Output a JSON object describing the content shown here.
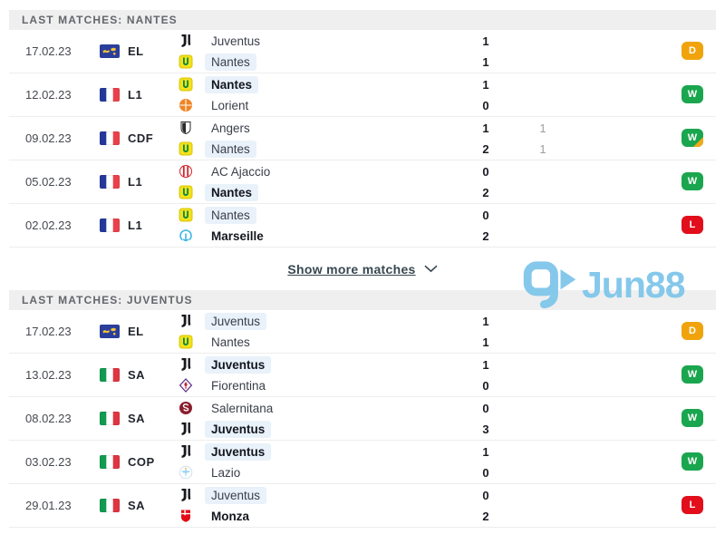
{
  "watermark": {
    "text": "Jun88",
    "logo_icon": "jun88-play-bubble-icon"
  },
  "colors": {
    "win": "#1aa64e",
    "draw": "#f0a30a",
    "loss": "#e20e1b",
    "aet_corner": "#f2a918",
    "team_highlight": "#e9f1fa",
    "watermark_blue": "#7fc6ea",
    "header_bg": "#efefef"
  },
  "sections": [
    {
      "title": "LAST MATCHES: NANTES",
      "show_more": "Show more matches",
      "rows": [
        {
          "date": "17.02.23",
          "competition": "EL",
          "flag": "europa-league",
          "home": {
            "team": "Juventus",
            "logo": "juventus",
            "score": "1",
            "score2": "",
            "bold": false,
            "highlight": false
          },
          "away": {
            "team": "Nantes",
            "logo": "nantes",
            "score": "1",
            "score2": "",
            "bold": false,
            "highlight": true
          },
          "result": "D",
          "aet": false
        },
        {
          "date": "12.02.23",
          "competition": "L1",
          "flag": "france",
          "home": {
            "team": "Nantes",
            "logo": "nantes",
            "score": "1",
            "score2": "",
            "bold": true,
            "highlight": true
          },
          "away": {
            "team": "Lorient",
            "logo": "lorient",
            "score": "0",
            "score2": "",
            "bold": false,
            "highlight": false
          },
          "result": "W",
          "aet": false
        },
        {
          "date": "09.02.23",
          "competition": "CDF",
          "flag": "france",
          "home": {
            "team": "Angers",
            "logo": "angers",
            "score": "1",
            "score2": "1",
            "bold": false,
            "highlight": false
          },
          "away": {
            "team": "Nantes",
            "logo": "nantes",
            "score": "2",
            "score2": "1",
            "bold": false,
            "highlight": true
          },
          "result": "W",
          "aet": true
        },
        {
          "date": "05.02.23",
          "competition": "L1",
          "flag": "france",
          "home": {
            "team": "AC Ajaccio",
            "logo": "ajaccio",
            "score": "0",
            "score2": "",
            "bold": false,
            "highlight": false
          },
          "away": {
            "team": "Nantes",
            "logo": "nantes",
            "score": "2",
            "score2": "",
            "bold": true,
            "highlight": true
          },
          "result": "W",
          "aet": false
        },
        {
          "date": "02.02.23",
          "competition": "L1",
          "flag": "france",
          "home": {
            "team": "Nantes",
            "logo": "nantes",
            "score": "0",
            "score2": "",
            "bold": false,
            "highlight": true
          },
          "away": {
            "team": "Marseille",
            "logo": "marseille",
            "score": "2",
            "score2": "",
            "bold": true,
            "highlight": false
          },
          "result": "L",
          "aet": false
        }
      ]
    },
    {
      "title": "LAST MATCHES: JUVENTUS",
      "show_more": "",
      "rows": [
        {
          "date": "17.02.23",
          "competition": "EL",
          "flag": "europa-league",
          "home": {
            "team": "Juventus",
            "logo": "juventus",
            "score": "1",
            "score2": "",
            "bold": false,
            "highlight": true
          },
          "away": {
            "team": "Nantes",
            "logo": "nantes",
            "score": "1",
            "score2": "",
            "bold": false,
            "highlight": false
          },
          "result": "D",
          "aet": false
        },
        {
          "date": "13.02.23",
          "competition": "SA",
          "flag": "italy",
          "home": {
            "team": "Juventus",
            "logo": "juventus",
            "score": "1",
            "score2": "",
            "bold": true,
            "highlight": true
          },
          "away": {
            "team": "Fiorentina",
            "logo": "fiorentina",
            "score": "0",
            "score2": "",
            "bold": false,
            "highlight": false
          },
          "result": "W",
          "aet": false
        },
        {
          "date": "08.02.23",
          "competition": "SA",
          "flag": "italy",
          "home": {
            "team": "Salernitana",
            "logo": "salernitana",
            "score": "0",
            "score2": "",
            "bold": false,
            "highlight": false
          },
          "away": {
            "team": "Juventus",
            "logo": "juventus",
            "score": "3",
            "score2": "",
            "bold": true,
            "highlight": true
          },
          "result": "W",
          "aet": false
        },
        {
          "date": "03.02.23",
          "competition": "COP",
          "flag": "italy",
          "home": {
            "team": "Juventus",
            "logo": "juventus",
            "score": "1",
            "score2": "",
            "bold": true,
            "highlight": true
          },
          "away": {
            "team": "Lazio",
            "logo": "lazio",
            "score": "0",
            "score2": "",
            "bold": false,
            "highlight": false
          },
          "result": "W",
          "aet": false
        },
        {
          "date": "29.01.23",
          "competition": "SA",
          "flag": "italy",
          "home": {
            "team": "Juventus",
            "logo": "juventus",
            "score": "0",
            "score2": "",
            "bold": false,
            "highlight": true
          },
          "away": {
            "team": "Monza",
            "logo": "monza",
            "score": "2",
            "score2": "",
            "bold": true,
            "highlight": false
          },
          "result": "L",
          "aet": false
        }
      ]
    }
  ]
}
